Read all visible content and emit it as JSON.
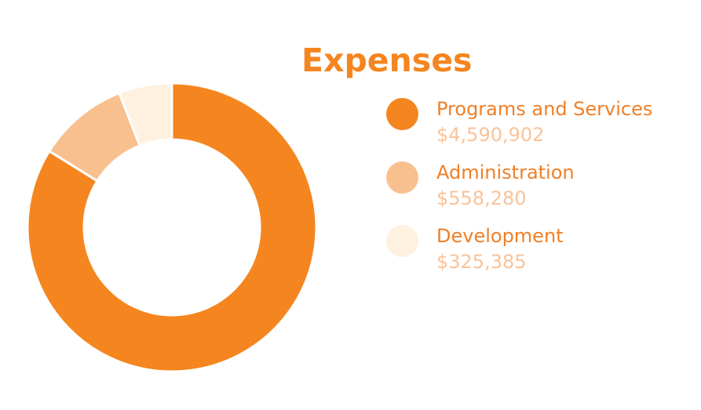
{
  "chart_data": {
    "type": "pie",
    "title": "Expenses",
    "categories": [
      "Programs and Services",
      "Administration",
      "Development"
    ],
    "values": [
      4590902,
      558280,
      325385
    ],
    "value_labels": [
      "$4,590,902",
      "$558,280",
      "$325,385"
    ],
    "colors": [
      "#f5851f",
      "#f9c08f",
      "#fef1df"
    ],
    "legend_position": "right",
    "donut": true
  }
}
